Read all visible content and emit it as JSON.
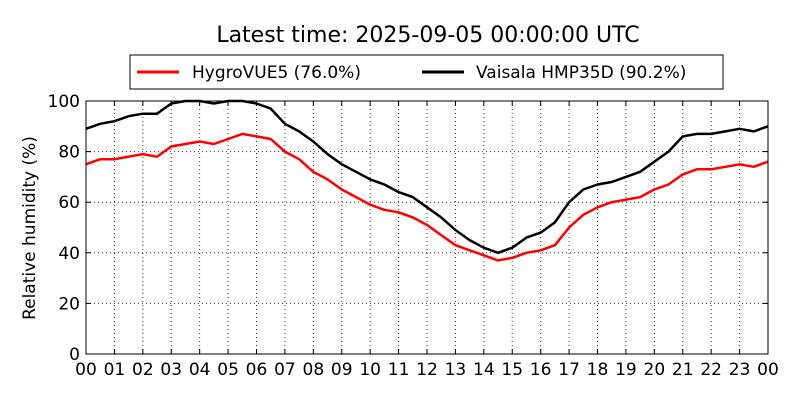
{
  "chart_data": {
    "type": "line",
    "title": "Latest time: 2025-09-05 00:00:00 UTC",
    "xlabel": "",
    "ylabel": "Relative humidity (%)",
    "xlim": [
      0,
      24
    ],
    "ylim": [
      0,
      100
    ],
    "x_tick_labels": [
      "00",
      "01",
      "02",
      "03",
      "04",
      "05",
      "06",
      "07",
      "08",
      "09",
      "10",
      "11",
      "12",
      "13",
      "14",
      "15",
      "16",
      "17",
      "18",
      "19",
      "20",
      "21",
      "22",
      "23",
      "00"
    ],
    "y_ticks": [
      0,
      20,
      40,
      60,
      80,
      100
    ],
    "grid": true,
    "legend_position": "top",
    "series": [
      {
        "name": "HygroVUE5 (76.0%)",
        "color": "#ff0000",
        "x": [
          0,
          0.5,
          1,
          1.5,
          2,
          2.5,
          3,
          3.5,
          4,
          4.5,
          5,
          5.5,
          6,
          6.5,
          7,
          7.5,
          8,
          8.5,
          9,
          9.5,
          10,
          10.5,
          11,
          11.5,
          12,
          12.5,
          13,
          13.5,
          14,
          14.5,
          15,
          15.5,
          16,
          16.5,
          17,
          17.5,
          18,
          18.5,
          19,
          19.5,
          20,
          20.5,
          21,
          21.5,
          22,
          22.5,
          23,
          23.5,
          24
        ],
        "values": [
          75,
          77,
          77,
          78,
          79,
          78,
          82,
          83,
          84,
          83,
          85,
          87,
          86,
          85,
          80,
          77,
          72,
          69,
          65,
          62,
          59,
          57,
          56,
          54,
          51,
          47,
          43,
          41,
          39,
          37,
          38,
          40,
          41,
          43,
          50,
          55,
          58,
          60,
          61,
          62,
          65,
          67,
          71,
          73,
          73,
          74,
          75,
          74,
          76
        ]
      },
      {
        "name": "Vaisala HMP35D (90.2%)",
        "color": "#000000",
        "x": [
          0,
          0.5,
          1,
          1.5,
          2,
          2.5,
          3,
          3.5,
          4,
          4.5,
          5,
          5.5,
          6,
          6.5,
          7,
          7.5,
          8,
          8.5,
          9,
          9.5,
          10,
          10.5,
          11,
          11.5,
          12,
          12.5,
          13,
          13.5,
          14,
          14.5,
          15,
          15.5,
          16,
          16.5,
          17,
          17.5,
          18,
          18.5,
          19,
          19.5,
          20,
          20.5,
          21,
          21.5,
          22,
          22.5,
          23,
          23.5,
          24
        ],
        "values": [
          89,
          91,
          92,
          94,
          95,
          95,
          99,
          100,
          100,
          99,
          100,
          100,
          99,
          97,
          91,
          88,
          84,
          79,
          75,
          72,
          69,
          67,
          64,
          62,
          58,
          54,
          49,
          45,
          42,
          40,
          42,
          46,
          48,
          52,
          60,
          65,
          67,
          68,
          70,
          72,
          76,
          80,
          86,
          87,
          87,
          88,
          89,
          88,
          90
        ]
      }
    ]
  }
}
